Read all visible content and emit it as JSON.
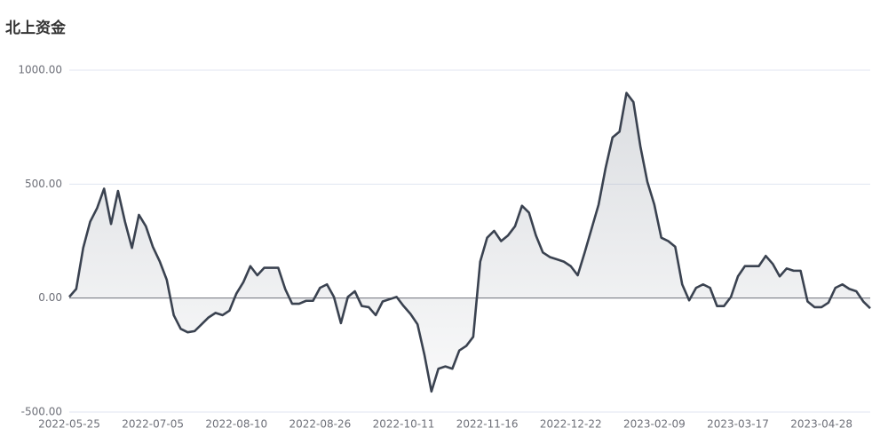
{
  "chart_data": {
    "type": "line",
    "title": "北上资金",
    "categories": [
      "2022-05-25",
      null,
      null,
      null,
      null,
      null,
      null,
      null,
      null,
      null,
      null,
      null,
      "2022-07-05",
      null,
      null,
      null,
      null,
      null,
      null,
      null,
      null,
      null,
      null,
      null,
      "2022-08-10",
      null,
      null,
      null,
      null,
      null,
      null,
      null,
      null,
      null,
      null,
      null,
      "2022-08-26",
      null,
      null,
      null,
      null,
      null,
      null,
      null,
      null,
      null,
      null,
      null,
      "2022-10-11",
      null,
      null,
      null,
      null,
      null,
      null,
      null,
      null,
      null,
      null,
      null,
      "2022-11-16",
      null,
      null,
      null,
      null,
      null,
      null,
      null,
      null,
      null,
      null,
      null,
      "2022-12-22",
      null,
      null,
      null,
      null,
      null,
      null,
      null,
      null,
      null,
      null,
      null,
      "2023-02-09",
      null,
      null,
      null,
      null,
      null,
      null,
      null,
      null,
      null,
      null,
      null,
      "2023-03-17",
      null,
      null,
      null,
      null,
      null,
      null,
      null,
      null,
      null,
      null,
      null,
      "2023-04-28",
      null,
      null,
      null,
      null,
      null,
      null,
      null
    ],
    "values": [
      5,
      40,
      220,
      335,
      395,
      480,
      325,
      470,
      335,
      220,
      365,
      315,
      225,
      160,
      80,
      -75,
      -135,
      -150,
      -145,
      -115,
      -85,
      -65,
      -75,
      -55,
      20,
      70,
      140,
      100,
      133,
      133,
      133,
      40,
      -25,
      -25,
      -12,
      -12,
      45,
      60,
      5,
      -110,
      5,
      30,
      -35,
      -40,
      -75,
      -15,
      -5,
      5,
      -35,
      -70,
      -115,
      -250,
      -410,
      -310,
      -300,
      -310,
      -230,
      -210,
      -170,
      160,
      265,
      295,
      250,
      275,
      315,
      405,
      375,
      275,
      200,
      180,
      170,
      160,
      140,
      100,
      200,
      305,
      410,
      570,
      705,
      730,
      900,
      860,
      665,
      510,
      410,
      265,
      250,
      225,
      60,
      -10,
      45,
      60,
      45,
      -35,
      -35,
      5,
      95,
      140,
      140,
      140,
      185,
      150,
      95,
      130,
      120,
      120,
      -15,
      -40,
      -40,
      -20,
      45,
      60,
      40,
      30,
      -15,
      -45
    ],
    "color": "#3a4250",
    "area": true,
    "ylim": [
      -500,
      1000
    ],
    "yticks": [
      {
        "value": -500,
        "label": "-500.00"
      },
      {
        "value": 0,
        "label": "0.00"
      },
      {
        "value": 500,
        "label": "500.00"
      },
      {
        "value": 1000,
        "label": "1000.00"
      }
    ],
    "grid": true
  }
}
